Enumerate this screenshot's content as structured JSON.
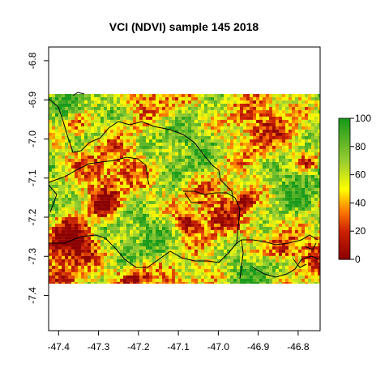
{
  "chart_data": {
    "type": "heatmap",
    "title": "VCI (NDVI) sample 145 2018",
    "xlabel": "",
    "ylabel": "",
    "x_ticks": [
      -47.4,
      -47.3,
      -47.2,
      -47.1,
      -47.0,
      -46.9,
      -46.8
    ],
    "x_tick_labels": [
      "-47.4",
      "-47.3",
      "-47.2",
      "-47.1",
      "-47.0",
      "-46.9",
      "-46.8"
    ],
    "y_ticks": [
      -6.8,
      -6.9,
      -7.0,
      -7.1,
      -7.2,
      -7.3,
      -7.4
    ],
    "y_tick_labels": [
      "-6.8",
      "-6.9",
      "-7.0",
      "-7.1",
      "-7.2",
      "-7.3",
      "-7.4"
    ],
    "xlim": [
      -47.425,
      -46.745
    ],
    "ylim": [
      -7.49,
      -6.765
    ],
    "raster_extent": {
      "xmin": -47.425,
      "xmax": -46.745,
      "ymin": -7.37,
      "ymax": -6.885
    },
    "value_range": [
      0,
      100
    ],
    "legend": {
      "placement": "right",
      "ticks": [
        0,
        20,
        40,
        60,
        80,
        100
      ],
      "tick_labels": [
        "0",
        "20",
        "40",
        "60",
        "80",
        "100"
      ],
      "colors": [
        "#8b0000",
        "#cc2200",
        "#ff7f00",
        "#ffff00",
        "#9acd32",
        "#1a9a1a"
      ]
    },
    "grid": false,
    "note_regions": "dark red low-VCI patches mainly on the western and southern parts, green patches in the center-east"
  }
}
